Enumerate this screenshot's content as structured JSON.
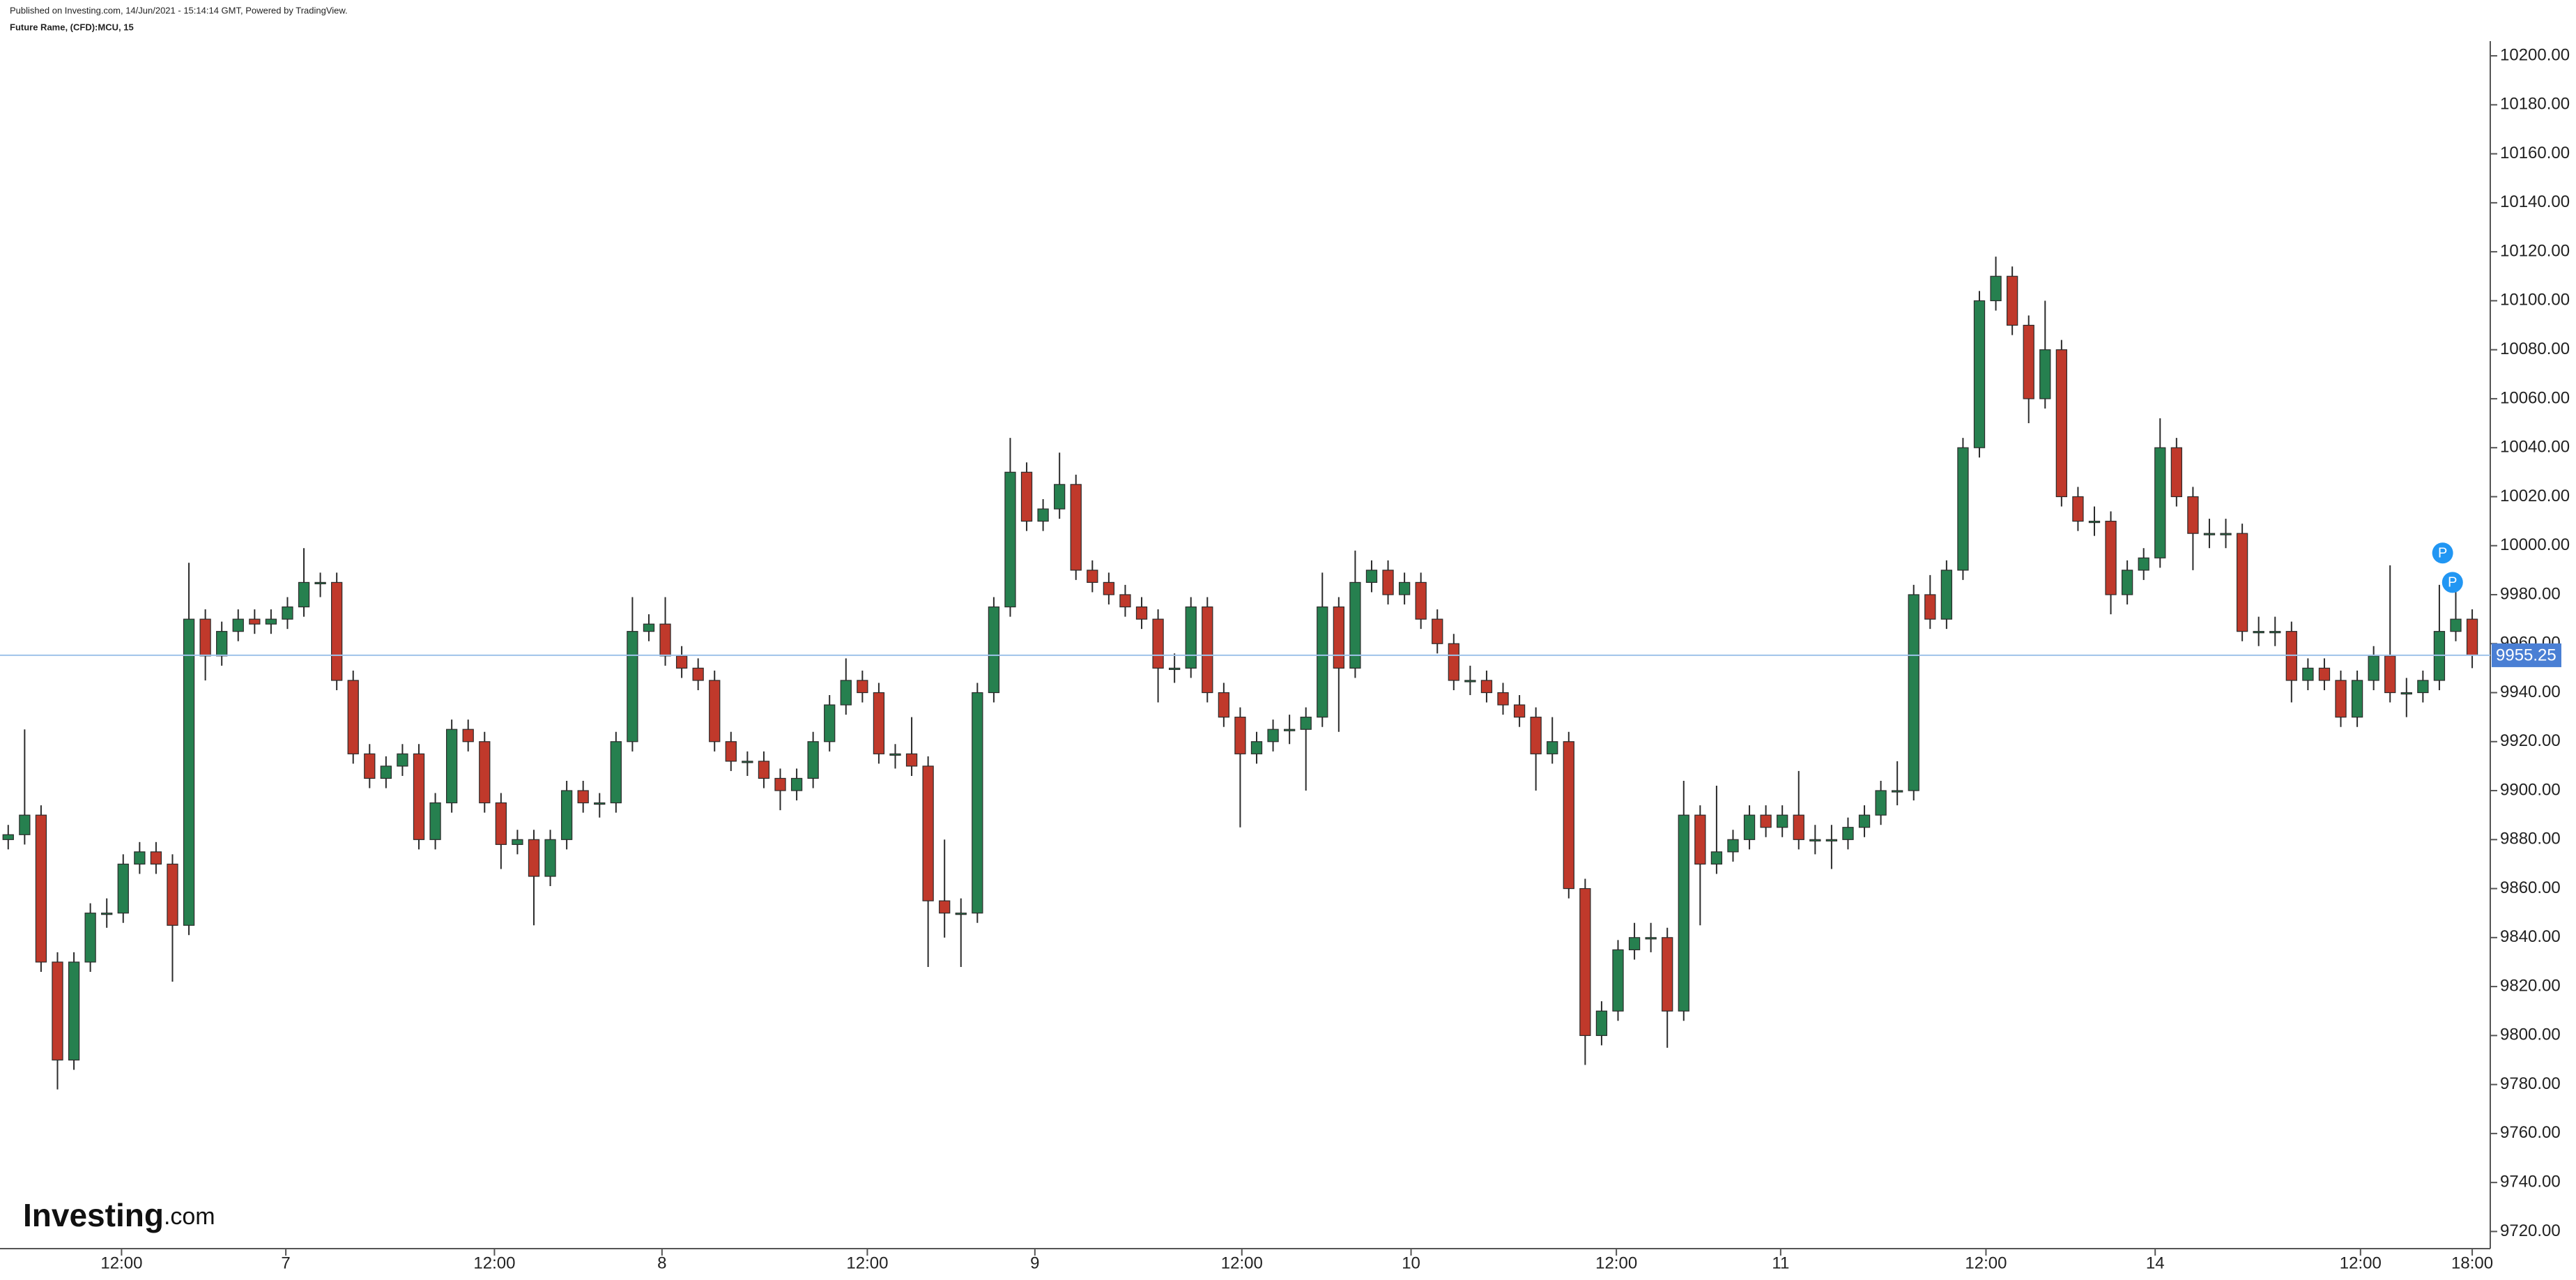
{
  "header": {
    "published": "Published on Investing.com, 14/Jun/2021 - 15:14:14 GMT, Powered by TradingView.",
    "symbol": "Future Rame, (CFD):MCU, 15"
  },
  "logo": {
    "brand": "Investing",
    "suffix": ".com"
  },
  "chart_data": {
    "type": "candlestick",
    "up_color": "#26804f",
    "down_color": "#c0392b",
    "wick_color": "#2b2b2b",
    "xlim": [
      -0.5,
      151.1
    ],
    "ylim": [
      9713,
      10206
    ],
    "xticks": [
      {
        "value": 6.9,
        "label": "12:00"
      },
      {
        "value": 16.9,
        "label": "7"
      },
      {
        "value": 29.6,
        "label": "12:00"
      },
      {
        "value": 39.8,
        "label": "8"
      },
      {
        "value": 52.3,
        "label": "12:00"
      },
      {
        "value": 62.5,
        "label": "9"
      },
      {
        "value": 75.1,
        "label": "12:00"
      },
      {
        "value": 85.4,
        "label": "10"
      },
      {
        "value": 97.9,
        "label": "12:00"
      },
      {
        "value": 107.9,
        "label": "11"
      },
      {
        "value": 120.4,
        "label": "12:00"
      },
      {
        "value": 130.7,
        "label": "14"
      },
      {
        "value": 143.2,
        "label": "12:00"
      },
      {
        "value": 150,
        "label": "18:00"
      }
    ],
    "yticks": [
      {
        "value": 9720,
        "label": "9720.00"
      },
      {
        "value": 9740,
        "label": "9740.00"
      },
      {
        "value": 9760,
        "label": "9760.00"
      },
      {
        "value": 9780,
        "label": "9780.00"
      },
      {
        "value": 9800,
        "label": "9800.00"
      },
      {
        "value": 9820,
        "label": "9820.00"
      },
      {
        "value": 9840,
        "label": "9840.00"
      },
      {
        "value": 9860,
        "label": "9860.00"
      },
      {
        "value": 9880,
        "label": "9880.00"
      },
      {
        "value": 9900,
        "label": "9900.00"
      },
      {
        "value": 9920,
        "label": "9920.00"
      },
      {
        "value": 9940,
        "label": "9940.00"
      },
      {
        "value": 9960,
        "label": "9960.00"
      },
      {
        "value": 9980,
        "label": "9980.00"
      },
      {
        "value": 10000,
        "label": "10000.00"
      },
      {
        "value": 10020,
        "label": "10020.00"
      },
      {
        "value": 10040,
        "label": "10040.00"
      },
      {
        "value": 10060,
        "label": "10060.00"
      },
      {
        "value": 10080,
        "label": "10080.00"
      },
      {
        "value": 10100,
        "label": "10100.00"
      },
      {
        "value": 10120,
        "label": "10120.00"
      },
      {
        "value": 10140,
        "label": "10140.00"
      },
      {
        "value": 10160,
        "label": "10160.00"
      },
      {
        "value": 10180,
        "label": "10180.00"
      },
      {
        "value": 10200,
        "label": "10200.00"
      }
    ],
    "last_price": {
      "value": 9955.25,
      "label": "9955.25",
      "color": "#4a7fd4"
    },
    "events": [
      {
        "label": "P",
        "x": 148.2,
        "value": 9997
      },
      {
        "label": "P",
        "x": 148.8,
        "value": 9985
      }
    ],
    "open": [
      9880,
      9882,
      9890,
      9830,
      9790,
      9830,
      9850,
      9850,
      9870,
      9875,
      9870,
      9845,
      9970,
      9955,
      9965,
      9970,
      9968,
      9970,
      9975,
      9985,
      9985,
      9945,
      9915,
      9905,
      9910,
      9915,
      9880,
      9895,
      9925,
      9920,
      9895,
      9878,
      9880,
      9865,
      9880,
      9900,
      9895,
      9895,
      9920,
      9965,
      9968,
      9955,
      9950,
      9945,
      9920,
      9912,
      9912,
      9905,
      9900,
      9905,
      9920,
      9935,
      9945,
      9940,
      9915,
      9915,
      9910,
      9855,
      9850,
      9850,
      9940,
      9975,
      10030,
      10010,
      10015,
      10025,
      9990,
      9985,
      9980,
      9975,
      9970,
      9950,
      9950,
      9975,
      9940,
      9930,
      9915,
      9920,
      9925,
      9925,
      9930,
      9975,
      9950,
      9985,
      9990,
      9980,
      9985,
      9970,
      9960,
      9945,
      9945,
      9940,
      9935,
      9930,
      9915,
      9920,
      9860,
      9800,
      9810,
      9835,
      9840,
      9840,
      9810,
      9890,
      9870,
      9875,
      9880,
      9890,
      9885,
      9890,
      9880,
      9880,
      9880,
      9885,
      9890,
      9900,
      9900,
      9980,
      9970,
      9990,
      10040,
      10100,
      10110,
      10090,
      10060,
      10080,
      10020,
      10010,
      10010,
      9980,
      9990,
      9995,
      10040,
      10020,
      10005,
      10005,
      10005,
      9965,
      9965,
      9965,
      9945,
      9950,
      9945,
      9930,
      9945,
      9955,
      9940,
      9940,
      9945,
      9965,
      9970
    ],
    "high": [
      9886,
      9925,
      9894,
      9834,
      9834,
      9854,
      9856,
      9874,
      9879,
      9879,
      9874,
      9993,
      9974,
      9969,
      9974,
      9974,
      9974,
      9979,
      9999,
      9989,
      9989,
      9949,
      9919,
      9914,
      9919,
      9919,
      9899,
      9929,
      9929,
      9924,
      9899,
      9884,
      9884,
      9884,
      9904,
      9904,
      9899,
      9924,
      9979,
      9972,
      9979,
      9959,
      9954,
      9949,
      9924,
      9916,
      9916,
      9909,
      9909,
      9924,
      9939,
      9954,
      9949,
      9944,
      9919,
      9930,
      9914,
      9880,
      9856,
      9944,
      9979,
      10044,
      10034,
      10019,
      10038,
      10029,
      9994,
      9989,
      9984,
      9979,
      9974,
      9956,
      9979,
      9979,
      9944,
      9934,
      9924,
      9929,
      9931,
      9934,
      9989,
      9979,
      9998,
      9994,
      9994,
      9989,
      9989,
      9974,
      9964,
      9951,
      9949,
      9944,
      9939,
      9934,
      9930,
      9924,
      9864,
      9814,
      9839,
      9846,
      9846,
      9844,
      9904,
      9894,
      9902,
      9884,
      9894,
      9894,
      9894,
      9908,
      9886,
      9886,
      9889,
      9894,
      9904,
      9912,
      9984,
      9988,
      9994,
      10044,
      10104,
      10118,
      10114,
      10094,
      10100,
      10084,
      10024,
      10016,
      10014,
      9994,
      9999,
      10052,
      10044,
      10024,
      10011,
      10011,
      10009,
      9971,
      9971,
      9969,
      9954,
      9954,
      9949,
      9949,
      9959,
      9992,
      9946,
      9949,
      9984,
      9988,
      9974
    ],
    "low": [
      9876,
      9878,
      9826,
      9778,
      9786,
      9826,
      9844,
      9846,
      9866,
      9866,
      9822,
      9841,
      9945,
      9951,
      9961,
      9964,
      9964,
      9966,
      9971,
      9979,
      9941,
      9911,
      9901,
      9901,
      9906,
      9876,
      9876,
      9891,
      9916,
      9891,
      9868,
      9874,
      9845,
      9861,
      9876,
      9891,
      9889,
      9891,
      9916,
      9961,
      9951,
      9946,
      9941,
      9916,
      9908,
      9906,
      9901,
      9892,
      9896,
      9901,
      9916,
      9931,
      9936,
      9911,
      9909,
      9906,
      9828,
      9840,
      9828,
      9846,
      9936,
      9971,
      10006,
      10006,
      10011,
      9986,
      9981,
      9976,
      9971,
      9966,
      9936,
      9944,
      9946,
      9936,
      9926,
      9885,
      9911,
      9916,
      9919,
      9900,
      9926,
      9924,
      9946,
      9981,
      9976,
      9976,
      9966,
      9956,
      9941,
      9939,
      9936,
      9931,
      9926,
      9900,
      9911,
      9856,
      9788,
      9796,
      9806,
      9831,
      9834,
      9795,
      9806,
      9845,
      9866,
      9871,
      9876,
      9881,
      9881,
      9876,
      9874,
      9868,
      9876,
      9881,
      9886,
      9894,
      9896,
      9966,
      9966,
      9986,
      10036,
      10096,
      10086,
      10050,
      10056,
      10016,
      10006,
      10004,
      9972,
      9976,
      9986,
      9991,
      10016,
      9990,
      9999,
      9999,
      9961,
      9959,
      9959,
      9936,
      9941,
      9941,
      9926,
      9926,
      9941,
      9936,
      9930,
      9936,
      9941,
      9961,
      9950
    ],
    "close": [
      9882,
      9890,
      9830,
      9790,
      9830,
      9850,
      9850,
      9870,
      9875,
      9870,
      9845,
      9970,
      9955,
      9965,
      9970,
      9968,
      9970,
      9975,
      9985,
      9985,
      9945,
      9915,
      9905,
      9910,
      9915,
      9880,
      9895,
      9925,
      9920,
      9895,
      9878,
      9880,
      9865,
      9880,
      9900,
      9895,
      9895,
      9920,
      9965,
      9968,
      9955,
      9950,
      9945,
      9920,
      9912,
      9912,
      9905,
      9900,
      9905,
      9920,
      9935,
      9945,
      9940,
      9915,
      9915,
      9910,
      9855,
      9850,
      9850,
      9940,
      9975,
      10030,
      10010,
      10015,
      10025,
      9990,
      9985,
      9980,
      9975,
      9970,
      9950,
      9950,
      9975,
      9940,
      9930,
      9915,
      9920,
      9925,
      9925,
      9930,
      9975,
      9950,
      9985,
      9990,
      9980,
      9985,
      9970,
      9960,
      9945,
      9945,
      9940,
      9935,
      9930,
      9915,
      9920,
      9860,
      9800,
      9810,
      9835,
      9840,
      9840,
      9810,
      9890,
      9870,
      9875,
      9880,
      9890,
      9885,
      9890,
      9880,
      9880,
      9880,
      9885,
      9890,
      9900,
      9900,
      9980,
      9970,
      9990,
      10040,
      10100,
      10110,
      10090,
      10060,
      10080,
      10020,
      10010,
      10010,
      9980,
      9990,
      9995,
      10040,
      10020,
      10005,
      10005,
      10005,
      9965,
      9965,
      9965,
      9945,
      9950,
      9945,
      9930,
      9945,
      9955,
      9940,
      9940,
      9945,
      9965,
      9970,
      9955.25
    ]
  }
}
